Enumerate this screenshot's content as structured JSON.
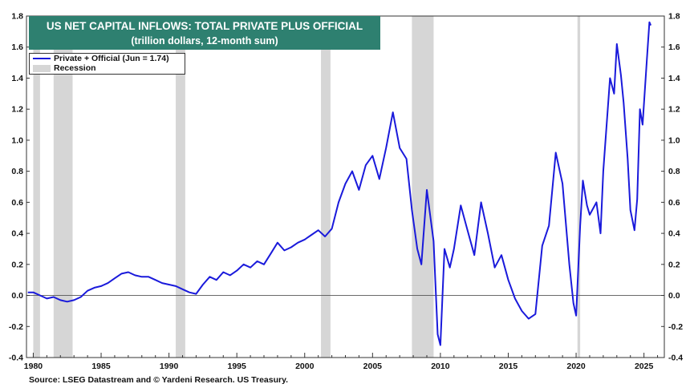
{
  "title_line1": "US NET CAPITAL INFLOWS: TOTAL PRIVATE PLUS OFFICIAL",
  "title_line2": "(trillion dollars, 12-month sum)",
  "legend": {
    "series_label": "Private + Official (Jun = 1.74)",
    "recession_label": "Recession"
  },
  "source": "Source: LSEG Datastream and © Yardeni Research. US Treasury.",
  "colors": {
    "line": "#1a1adb",
    "recession": "#d6d6d6",
    "title_bg": "#2e8070",
    "zero_line": "#555555"
  },
  "chart_data": {
    "type": "line",
    "title": "US NET CAPITAL INFLOWS: TOTAL PRIVATE PLUS OFFICIAL",
    "subtitle": "(trillion dollars, 12-month sum)",
    "xlim": [
      1979.5,
      2026.5
    ],
    "ylim": [
      -0.4,
      1.8
    ],
    "x_ticks": [
      1980,
      1985,
      1990,
      1995,
      2000,
      2005,
      2010,
      2015,
      2020,
      2025
    ],
    "y_ticks": [
      -0.4,
      -0.2,
      0.0,
      0.2,
      0.4,
      0.6,
      0.8,
      1.0,
      1.2,
      1.4,
      1.6,
      1.8
    ],
    "y_tick_labels": [
      "-0.4",
      "-0.2",
      "0.0",
      "0.2",
      "0.4",
      "0.6",
      "0.8",
      "1.0",
      "1.2",
      "1.4",
      "1.6",
      "1.8"
    ],
    "grid": false,
    "zero_line": true,
    "legend_position": "top-left",
    "recessions": [
      [
        1980.0,
        1980.5
      ],
      [
        1981.5,
        1982.9
      ],
      [
        1990.5,
        1991.2
      ],
      [
        2001.2,
        2001.9
      ],
      [
        2007.9,
        2009.5
      ],
      [
        2020.1,
        2020.3
      ]
    ],
    "series": [
      {
        "name": "Private + Official (Jun = 1.74)",
        "points": [
          [
            1979.6,
            0.02
          ],
          [
            1980.0,
            0.02
          ],
          [
            1980.5,
            0.0
          ],
          [
            1981.0,
            -0.02
          ],
          [
            1981.5,
            -0.01
          ],
          [
            1982.0,
            -0.03
          ],
          [
            1982.5,
            -0.04
          ],
          [
            1983.0,
            -0.03
          ],
          [
            1983.5,
            -0.01
          ],
          [
            1984.0,
            0.03
          ],
          [
            1984.5,
            0.05
          ],
          [
            1985.0,
            0.06
          ],
          [
            1985.5,
            0.08
          ],
          [
            1986.0,
            0.11
          ],
          [
            1986.5,
            0.14
          ],
          [
            1987.0,
            0.15
          ],
          [
            1987.5,
            0.13
          ],
          [
            1988.0,
            0.12
          ],
          [
            1988.5,
            0.12
          ],
          [
            1989.0,
            0.1
          ],
          [
            1989.5,
            0.08
          ],
          [
            1990.0,
            0.07
          ],
          [
            1990.5,
            0.06
          ],
          [
            1991.0,
            0.04
          ],
          [
            1991.5,
            0.02
          ],
          [
            1992.0,
            0.01
          ],
          [
            1992.5,
            0.07
          ],
          [
            1993.0,
            0.12
          ],
          [
            1993.5,
            0.1
          ],
          [
            1994.0,
            0.15
          ],
          [
            1994.5,
            0.13
          ],
          [
            1995.0,
            0.16
          ],
          [
            1995.5,
            0.2
          ],
          [
            1996.0,
            0.18
          ],
          [
            1996.5,
            0.22
          ],
          [
            1997.0,
            0.2
          ],
          [
            1997.5,
            0.27
          ],
          [
            1998.0,
            0.34
          ],
          [
            1998.5,
            0.29
          ],
          [
            1999.0,
            0.31
          ],
          [
            1999.5,
            0.34
          ],
          [
            2000.0,
            0.36
          ],
          [
            2000.5,
            0.39
          ],
          [
            2001.0,
            0.42
          ],
          [
            2001.5,
            0.38
          ],
          [
            2002.0,
            0.43
          ],
          [
            2002.5,
            0.6
          ],
          [
            2003.0,
            0.72
          ],
          [
            2003.5,
            0.8
          ],
          [
            2004.0,
            0.68
          ],
          [
            2004.5,
            0.84
          ],
          [
            2005.0,
            0.9
          ],
          [
            2005.5,
            0.75
          ],
          [
            2006.0,
            0.95
          ],
          [
            2006.5,
            1.18
          ],
          [
            2007.0,
            0.95
          ],
          [
            2007.5,
            0.88
          ],
          [
            2007.9,
            0.55
          ],
          [
            2008.3,
            0.3
          ],
          [
            2008.6,
            0.2
          ],
          [
            2009.0,
            0.68
          ],
          [
            2009.5,
            0.35
          ],
          [
            2009.8,
            -0.25
          ],
          [
            2010.0,
            -0.32
          ],
          [
            2010.3,
            0.3
          ],
          [
            2010.7,
            0.18
          ],
          [
            2011.0,
            0.3
          ],
          [
            2011.5,
            0.58
          ],
          [
            2012.0,
            0.42
          ],
          [
            2012.5,
            0.26
          ],
          [
            2013.0,
            0.6
          ],
          [
            2013.5,
            0.4
          ],
          [
            2014.0,
            0.18
          ],
          [
            2014.5,
            0.26
          ],
          [
            2015.0,
            0.1
          ],
          [
            2015.5,
            -0.02
          ],
          [
            2016.0,
            -0.1
          ],
          [
            2016.5,
            -0.15
          ],
          [
            2017.0,
            -0.12
          ],
          [
            2017.5,
            0.32
          ],
          [
            2018.0,
            0.45
          ],
          [
            2018.5,
            0.92
          ],
          [
            2019.0,
            0.72
          ],
          [
            2019.5,
            0.2
          ],
          [
            2019.8,
            -0.05
          ],
          [
            2020.0,
            -0.13
          ],
          [
            2020.3,
            0.45
          ],
          [
            2020.5,
            0.74
          ],
          [
            2020.8,
            0.58
          ],
          [
            2021.0,
            0.52
          ],
          [
            2021.5,
            0.6
          ],
          [
            2021.8,
            0.4
          ],
          [
            2022.0,
            0.8
          ],
          [
            2022.5,
            1.4
          ],
          [
            2022.8,
            1.3
          ],
          [
            2023.0,
            1.62
          ],
          [
            2023.3,
            1.42
          ],
          [
            2023.5,
            1.24
          ],
          [
            2023.8,
            0.88
          ],
          [
            2024.0,
            0.55
          ],
          [
            2024.3,
            0.42
          ],
          [
            2024.5,
            0.62
          ],
          [
            2024.7,
            1.2
          ],
          [
            2024.9,
            1.1
          ],
          [
            2025.2,
            1.5
          ],
          [
            2025.4,
            1.76
          ],
          [
            2025.5,
            1.74
          ]
        ]
      }
    ]
  }
}
